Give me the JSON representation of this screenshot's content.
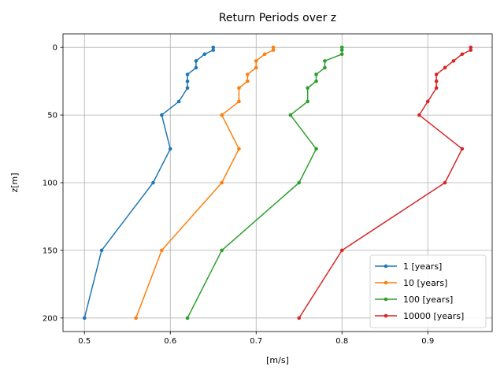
{
  "chart_data": {
    "type": "line",
    "title": "Return Periods over z",
    "xlabel": "[m/s]",
    "ylabel": "z[m]",
    "xlim": [
      0.475,
      0.975
    ],
    "ylim": [
      210,
      -10
    ],
    "y_inverted": true,
    "grid": true,
    "legend_position": "lower-right",
    "xticks": [
      0.5,
      0.6,
      0.7,
      0.8,
      0.9
    ],
    "xtick_labels": [
      "0.5",
      "0.6",
      "0.7",
      "0.8",
      "0.9"
    ],
    "yticks": [
      0,
      50,
      100,
      150,
      200
    ],
    "ytick_labels": [
      "0",
      "50",
      "100",
      "150",
      "200"
    ],
    "series": [
      {
        "name": "1 [years]",
        "color": "#1f77b4",
        "points": [
          {
            "x": 0.65,
            "y": 0
          },
          {
            "x": 0.65,
            "y": 2
          },
          {
            "x": 0.64,
            "y": 5
          },
          {
            "x": 0.63,
            "y": 10
          },
          {
            "x": 0.63,
            "y": 15
          },
          {
            "x": 0.62,
            "y": 20
          },
          {
            "x": 0.62,
            "y": 25
          },
          {
            "x": 0.62,
            "y": 30
          },
          {
            "x": 0.61,
            "y": 40
          },
          {
            "x": 0.59,
            "y": 50
          },
          {
            "x": 0.6,
            "y": 75
          },
          {
            "x": 0.58,
            "y": 100
          },
          {
            "x": 0.52,
            "y": 150
          },
          {
            "x": 0.5,
            "y": 200
          }
        ]
      },
      {
        "name": "10 [years]",
        "color": "#ff7f0e",
        "points": [
          {
            "x": 0.72,
            "y": 0
          },
          {
            "x": 0.72,
            "y": 2
          },
          {
            "x": 0.71,
            "y": 5
          },
          {
            "x": 0.7,
            "y": 10
          },
          {
            "x": 0.7,
            "y": 15
          },
          {
            "x": 0.69,
            "y": 20
          },
          {
            "x": 0.69,
            "y": 25
          },
          {
            "x": 0.68,
            "y": 30
          },
          {
            "x": 0.68,
            "y": 40
          },
          {
            "x": 0.66,
            "y": 50
          },
          {
            "x": 0.68,
            "y": 75
          },
          {
            "x": 0.66,
            "y": 100
          },
          {
            "x": 0.59,
            "y": 150
          },
          {
            "x": 0.56,
            "y": 200
          }
        ]
      },
      {
        "name": "100 [years]",
        "color": "#2ca02c",
        "points": [
          {
            "x": 0.8,
            "y": 0
          },
          {
            "x": 0.8,
            "y": 2
          },
          {
            "x": 0.8,
            "y": 5
          },
          {
            "x": 0.78,
            "y": 10
          },
          {
            "x": 0.78,
            "y": 15
          },
          {
            "x": 0.77,
            "y": 20
          },
          {
            "x": 0.77,
            "y": 25
          },
          {
            "x": 0.76,
            "y": 30
          },
          {
            "x": 0.76,
            "y": 40
          },
          {
            "x": 0.74,
            "y": 50
          },
          {
            "x": 0.77,
            "y": 75
          },
          {
            "x": 0.75,
            "y": 100
          },
          {
            "x": 0.66,
            "y": 150
          },
          {
            "x": 0.62,
            "y": 200
          }
        ]
      },
      {
        "name": "10000 [years]",
        "color": "#d62728",
        "points": [
          {
            "x": 0.95,
            "y": 0
          },
          {
            "x": 0.95,
            "y": 2
          },
          {
            "x": 0.94,
            "y": 5
          },
          {
            "x": 0.93,
            "y": 10
          },
          {
            "x": 0.92,
            "y": 15
          },
          {
            "x": 0.91,
            "y": 20
          },
          {
            "x": 0.91,
            "y": 25
          },
          {
            "x": 0.91,
            "y": 30
          },
          {
            "x": 0.9,
            "y": 40
          },
          {
            "x": 0.89,
            "y": 50
          },
          {
            "x": 0.94,
            "y": 75
          },
          {
            "x": 0.92,
            "y": 100
          },
          {
            "x": 0.8,
            "y": 150
          },
          {
            "x": 0.75,
            "y": 200
          }
        ]
      }
    ]
  }
}
